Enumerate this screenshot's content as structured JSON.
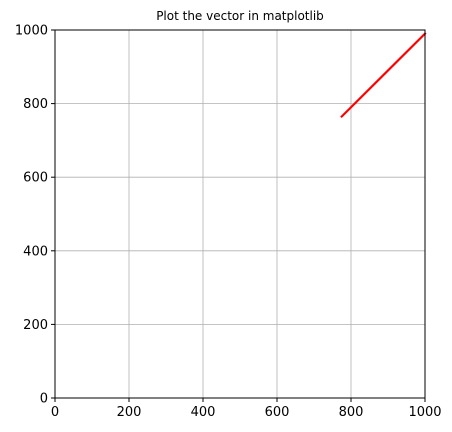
{
  "chart_data": {
    "type": "line",
    "title": "Plot the vector in matplotlib",
    "xlabel": "",
    "ylabel": "",
    "xlim": [
      0,
      1000
    ],
    "ylim": [
      0,
      1000
    ],
    "xticks": [
      0,
      200,
      400,
      600,
      800,
      1000
    ],
    "yticks": [
      0,
      200,
      400,
      600,
      800,
      1000
    ],
    "grid": true,
    "series": [
      {
        "color": "#ff0000",
        "x": [
          775,
          1000
        ],
        "y": [
          765,
          990
        ]
      }
    ]
  },
  "colors": {
    "grid": "#b0b0b0",
    "axes": "#000000",
    "background": "#ffffff"
  }
}
